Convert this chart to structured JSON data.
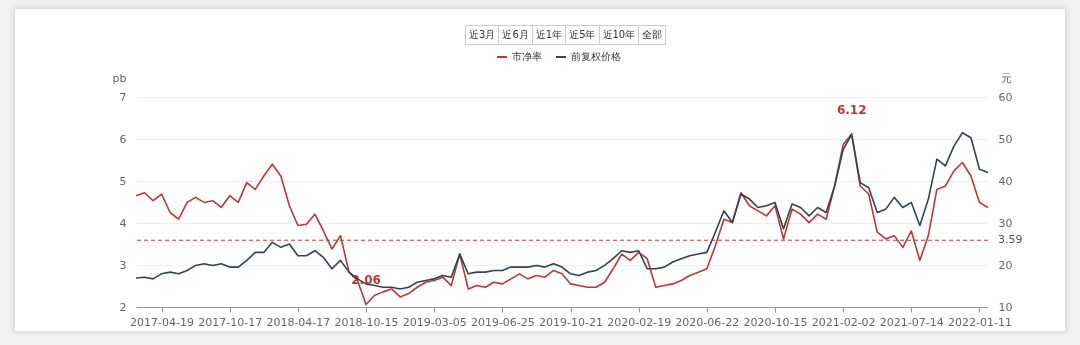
{
  "chart_data": {
    "type": "line",
    "categories": [
      null,
      null,
      null,
      "2017-04-19",
      null,
      null,
      null,
      null,
      null,
      null,
      null,
      "2017-10-17",
      null,
      null,
      null,
      null,
      null,
      null,
      null,
      "2018-04-17",
      null,
      null,
      null,
      null,
      null,
      null,
      null,
      "2018-10-15",
      null,
      null,
      null,
      null,
      null,
      null,
      null,
      "2019-03-05",
      null,
      null,
      null,
      null,
      null,
      null,
      null,
      "2019-06-25",
      null,
      null,
      null,
      null,
      null,
      null,
      null,
      "2019-10-21",
      null,
      null,
      null,
      null,
      null,
      null,
      null,
      "2020-02-19",
      null,
      null,
      null,
      null,
      null,
      null,
      null,
      "2020-06-22",
      null,
      null,
      null,
      null,
      null,
      null,
      null,
      "2020-10-15",
      null,
      null,
      null,
      null,
      null,
      null,
      null,
      "2021-02-02",
      null,
      null,
      null,
      null,
      null,
      null,
      null,
      "2021-07-14",
      null,
      null,
      null,
      null,
      null,
      null,
      null,
      "2022-01-11",
      null
    ],
    "series": [
      {
        "name": "市净率",
        "color": "#c23531",
        "values": [
          4.65,
          4.72,
          4.53,
          4.69,
          4.25,
          4.09,
          4.49,
          4.61,
          4.49,
          4.53,
          4.37,
          4.65,
          4.49,
          4.96,
          4.8,
          5.12,
          5.4,
          5.12,
          4.41,
          3.94,
          3.97,
          4.21,
          3.81,
          3.38,
          3.7,
          2.83,
          2.63,
          2.06,
          2.28,
          2.36,
          2.43,
          2.24,
          2.32,
          2.47,
          2.59,
          2.63,
          2.71,
          2.51,
          3.26,
          2.43,
          2.51,
          2.47,
          2.59,
          2.55,
          2.67,
          2.79,
          2.67,
          2.75,
          2.71,
          2.87,
          2.79,
          2.55,
          2.51,
          2.47,
          2.47,
          2.59,
          2.91,
          3.26,
          3.11,
          3.3,
          3.15,
          2.47,
          2.51,
          2.55,
          2.63,
          2.75,
          2.83,
          2.91,
          3.46,
          4.09,
          4.01,
          4.72,
          4.41,
          4.29,
          4.17,
          4.41,
          3.62,
          4.33,
          4.21,
          4.01,
          4.21,
          4.09,
          4.88,
          5.87,
          6.12,
          4.88,
          4.69,
          3.78,
          3.62,
          3.7,
          3.42,
          3.81,
          3.11,
          3.7,
          4.8,
          4.88,
          5.24,
          5.44,
          5.12,
          4.49,
          4.37
        ]
      },
      {
        "name": "前复权价格",
        "color": "#2f4554",
        "axis": "y2",
        "values": [
          16.9,
          17.1,
          16.7,
          17.9,
          18.3,
          17.9,
          18.7,
          19.9,
          20.3,
          19.9,
          20.3,
          19.5,
          19.5,
          21.1,
          23.0,
          23.0,
          25.4,
          24.2,
          25.0,
          22.2,
          22.2,
          23.4,
          21.8,
          19.1,
          21.1,
          18.3,
          16.7,
          15.5,
          15.1,
          14.7,
          14.7,
          14.3,
          14.7,
          15.9,
          16.3,
          16.7,
          17.5,
          17.1,
          22.6,
          17.9,
          18.3,
          18.3,
          18.7,
          18.7,
          19.5,
          19.5,
          19.5,
          19.9,
          19.5,
          20.3,
          19.5,
          17.9,
          17.5,
          18.3,
          18.7,
          19.9,
          21.5,
          23.4,
          23.0,
          23.4,
          19.1,
          19.1,
          19.5,
          20.7,
          21.5,
          22.2,
          22.6,
          23.0,
          27.8,
          32.9,
          30.1,
          36.9,
          35.7,
          33.7,
          34.1,
          34.9,
          28.6,
          34.5,
          33.7,
          31.7,
          33.7,
          32.5,
          38.8,
          47.5,
          51.1,
          39.6,
          38.4,
          32.5,
          33.3,
          36.1,
          33.7,
          34.9,
          29.4,
          35.7,
          45.2,
          43.6,
          48.3,
          51.5,
          50.3,
          42.8,
          42.0
        ]
      }
    ],
    "ylabel": "pb",
    "y2label": "元",
    "ylim": [
      2,
      7
    ],
    "yticks": [
      2,
      3,
      4,
      5,
      6,
      7
    ],
    "y2lim": [
      10,
      60
    ],
    "y2ticks": [
      10,
      20,
      30,
      40,
      50,
      60
    ],
    "grid": "y",
    "legend": "top",
    "ref_lines": [
      {
        "axis": "y",
        "value": 3.59,
        "label": "3.59",
        "color": "#c23531",
        "line_style": "dashed"
      }
    ],
    "annotations": [
      "近3月",
      "近6月",
      "近1年",
      "近5年",
      "近10年",
      "全部",
      {
        "text": "2.06",
        "x": "2018-10-15",
        "y": 2.06
      },
      {
        "text": "6.12",
        "y": 6.12
      }
    ]
  }
}
